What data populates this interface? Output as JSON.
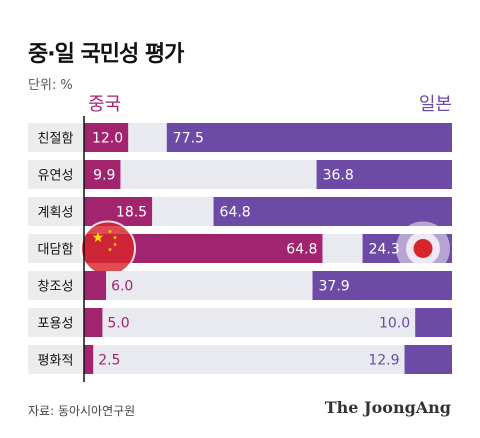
{
  "title": "중·일 국민성 평가",
  "unit_label": "단위: %",
  "source": "자료: 동아시아연구원",
  "brand": "The JoongAng",
  "colors": {
    "china": "#a3246e",
    "japan": "#6d4aa5",
    "track": "#e8eaf0",
    "label_bg": "#ececec",
    "flag_red": "#d7262b",
    "flag_star": "#ffde00"
  },
  "chart_data": {
    "type": "bar",
    "orientation": "horizontal-diverging",
    "categories": [
      "친절함",
      "유연성",
      "계획성",
      "대담함",
      "창조성",
      "포용성",
      "평화적"
    ],
    "series": [
      {
        "name": "중국",
        "values": [
          12.0,
          9.9,
          18.5,
          64.8,
          6.0,
          5.0,
          2.5
        ],
        "direction": "from-left"
      },
      {
        "name": "일본",
        "values": [
          77.5,
          36.8,
          64.8,
          24.3,
          37.9,
          10.0,
          12.9
        ],
        "direction": "from-right"
      }
    ],
    "value_labels": {
      "중국": [
        "12.0",
        "9.9",
        "18.5",
        "64.8",
        "6.0",
        "5.0",
        "2.5"
      ],
      "일본": [
        "77.5",
        "36.8",
        "64.8",
        "24.3",
        "37.9",
        "10.0",
        "12.9"
      ]
    },
    "xlim": [
      0,
      100
    ],
    "unit": "%",
    "flag_icons": [
      {
        "category": "대담함",
        "series": "중국",
        "icon": "china-flag-icon"
      },
      {
        "category": "대담함",
        "series": "일본",
        "icon": "japan-flag-icon"
      }
    ]
  }
}
